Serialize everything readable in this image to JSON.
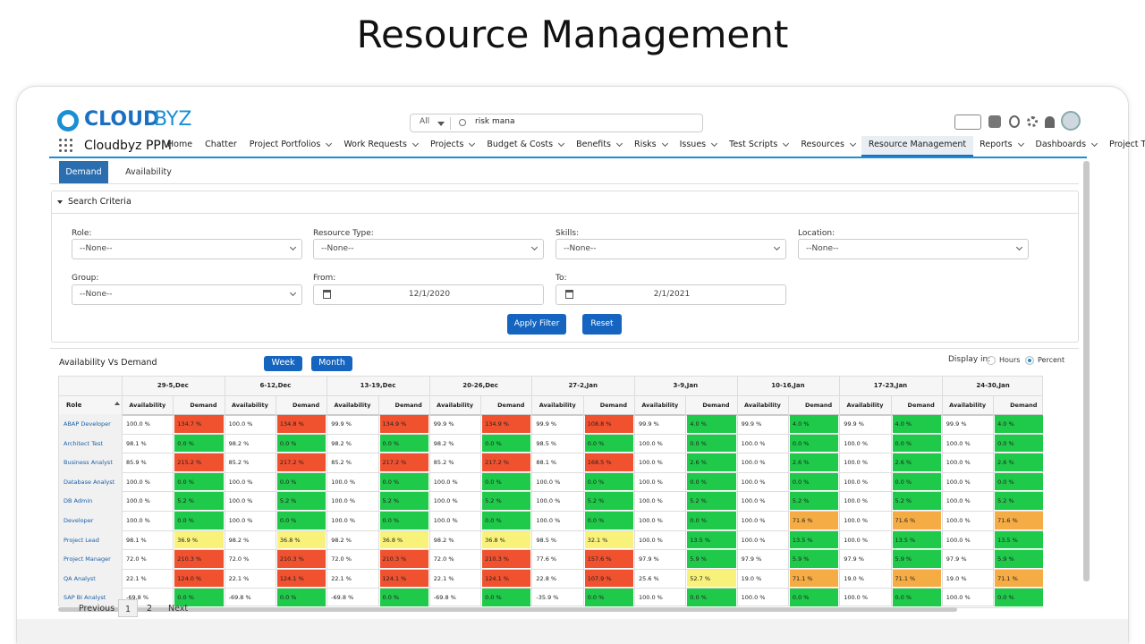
{
  "page_title": "Resource Management",
  "header": {
    "logo_bold": "CLOUD",
    "logo_light": "BYZ",
    "search_scope": "All",
    "search_query": "risk mana",
    "app_name": "Cloudbyz PPM"
  },
  "nav": [
    {
      "label": "Home",
      "menu": false,
      "active": false
    },
    {
      "label": "Chatter",
      "menu": false,
      "active": false
    },
    {
      "label": "Project Portfolios",
      "menu": true,
      "active": false
    },
    {
      "label": "Work Requests",
      "menu": true,
      "active": false
    },
    {
      "label": "Projects",
      "menu": true,
      "active": false
    },
    {
      "label": "Budget & Costs",
      "menu": true,
      "active": false
    },
    {
      "label": "Benefits",
      "menu": true,
      "active": false
    },
    {
      "label": "Risks",
      "menu": true,
      "active": false
    },
    {
      "label": "Issues",
      "menu": true,
      "active": false
    },
    {
      "label": "Test Scripts",
      "menu": true,
      "active": false
    },
    {
      "label": "Resources",
      "menu": true,
      "active": false
    },
    {
      "label": "Resource Management",
      "menu": false,
      "active": true
    },
    {
      "label": "Reports",
      "menu": true,
      "active": false
    },
    {
      "label": "Dashboards",
      "menu": true,
      "active": false
    },
    {
      "label": "Project Templates",
      "menu": true,
      "active": false
    }
  ],
  "tabs": [
    {
      "label": "Demand",
      "active": true
    },
    {
      "label": "Availability",
      "active": false
    }
  ],
  "search_criteria": {
    "title": "Search Criteria",
    "filters": [
      {
        "label": "Role:",
        "value": "--None--",
        "kind": "select"
      },
      {
        "label": "Resource Type:",
        "value": "--None--",
        "kind": "select"
      },
      {
        "label": "Skills:",
        "value": "--None--",
        "kind": "select"
      },
      {
        "label": "Location:",
        "value": "--None--",
        "kind": "select"
      },
      {
        "label": "Group:",
        "value": "--None--",
        "kind": "select"
      },
      {
        "label": "From:",
        "value": "12/1/2020",
        "kind": "date"
      },
      {
        "label": "To:",
        "value": "2/1/2021",
        "kind": "date"
      }
    ],
    "buttons": [
      "Apply Filter",
      "Reset"
    ]
  },
  "section": {
    "title": "Availability Vs Demand",
    "period_buttons": [
      "Week",
      "Month"
    ],
    "display_label": "Display in:",
    "display_options": [
      {
        "label": "Hours",
        "selected": false
      },
      {
        "label": "Percent",
        "selected": true
      }
    ]
  },
  "table": {
    "weeks": [
      "29-5,Dec",
      "6-12,Dec",
      "13-19,Dec",
      "20-26,Dec",
      "27-2,Jan",
      "3-9,Jan",
      "10-16,Jan",
      "17-23,Jan",
      "24-30,Jan"
    ],
    "role_header": "Role",
    "availability_header": "Availability",
    "demand_header": "Demand",
    "rows": [
      [
        "ABAP Developer",
        "100.0 %",
        "134.7 %",
        "100.0 %",
        "134.8 %",
        "99.9 %",
        "134.9 %",
        "99.9 %",
        "134.9 %",
        "99.9 %",
        "108.8 %",
        "99.9 %",
        "4.0 %",
        "99.9 %",
        "4.0 %",
        "99.9 %",
        "4.0 %",
        "99.9 %",
        "4.0 %"
      ],
      [
        "Architect Test",
        "98.1 %",
        "0.0 %",
        "98.2 %",
        "0.0 %",
        "98.2 %",
        "0.0 %",
        "98.2 %",
        "0.0 %",
        "98.5 %",
        "0.0 %",
        "100.0 %",
        "0.0 %",
        "100.0 %",
        "0.0 %",
        "100.0 %",
        "0.0 %",
        "100.0 %",
        "0.0 %"
      ],
      [
        "Business Analyst",
        "85.9 %",
        "215.2 %",
        "85.2 %",
        "217.2 %",
        "85.2 %",
        "217.2 %",
        "85.2 %",
        "217.2 %",
        "88.1 %",
        "168.5 %",
        "100.0 %",
        "2.6 %",
        "100.0 %",
        "2.6 %",
        "100.0 %",
        "2.6 %",
        "100.0 %",
        "2.6 %"
      ],
      [
        "Database Analyst",
        "100.0 %",
        "0.0 %",
        "100.0 %",
        "0.0 %",
        "100.0 %",
        "0.0 %",
        "100.0 %",
        "0.0 %",
        "100.0 %",
        "0.0 %",
        "100.0 %",
        "0.0 %",
        "100.0 %",
        "0.0 %",
        "100.0 %",
        "0.0 %",
        "100.0 %",
        "0.0 %"
      ],
      [
        "DB Admin",
        "100.0 %",
        "5.2 %",
        "100.0 %",
        "5.2 %",
        "100.0 %",
        "5.2 %",
        "100.0 %",
        "5.2 %",
        "100.0 %",
        "5.2 %",
        "100.0 %",
        "5.2 %",
        "100.0 %",
        "5.2 %",
        "100.0 %",
        "5.2 %",
        "100.0 %",
        "5.2 %"
      ],
      [
        "Developer",
        "100.0 %",
        "0.0 %",
        "100.0 %",
        "0.0 %",
        "100.0 %",
        "0.0 %",
        "100.0 %",
        "0.0 %",
        "100.0 %",
        "0.0 %",
        "100.0 %",
        "0.0 %",
        "100.0 %",
        "71.6 %",
        "100.0 %",
        "71.6 %",
        "100.0 %",
        "71.6 %"
      ],
      [
        "Project Lead",
        "98.1 %",
        "36.9 %",
        "98.2 %",
        "36.8 %",
        "98.2 %",
        "36.8 %",
        "98.2 %",
        "36.8 %",
        "98.5 %",
        "32.1 %",
        "100.0 %",
        "13.5 %",
        "100.0 %",
        "13.5 %",
        "100.0 %",
        "13.5 %",
        "100.0 %",
        "13.5 %"
      ],
      [
        "Project Manager",
        "72.0 %",
        "210.3 %",
        "72.0 %",
        "210.3 %",
        "72.0 %",
        "210.3 %",
        "72.0 %",
        "210.3 %",
        "77.6 %",
        "157.6 %",
        "97.9 %",
        "5.9 %",
        "97.9 %",
        "5.9 %",
        "97.9 %",
        "5.9 %",
        "97.9 %",
        "5.9 %"
      ],
      [
        "QA Analyst",
        "22.1 %",
        "124.0 %",
        "22.1 %",
        "124.1 %",
        "22.1 %",
        "124.1 %",
        "22.1 %",
        "124.1 %",
        "22.8 %",
        "107.9 %",
        "25.6 %",
        "52.7 %",
        "19.0 %",
        "71.1 %",
        "19.0 %",
        "71.1 %",
        "19.0 %",
        "71.1 %"
      ],
      [
        "SAP BI Analyst",
        "-69.8 %",
        "0.0 %",
        "-69.8 %",
        "0.0 %",
        "-69.8 %",
        "0.0 %",
        "-69.8 %",
        "0.0 %",
        "-35.9 %",
        "0.0 %",
        "100.0 %",
        "0.0 %",
        "100.0 %",
        "0.0 %",
        "100.0 %",
        "0.0 %",
        "100.0 %",
        "0.0 %"
      ]
    ]
  },
  "pagination": {
    "previous": "Previous",
    "pages": [
      "1",
      "2"
    ],
    "current": 0,
    "next": "Next"
  }
}
